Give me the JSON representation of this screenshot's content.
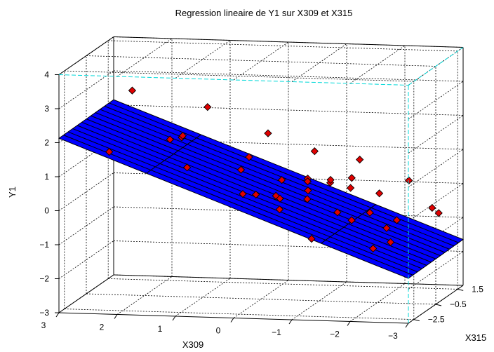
{
  "chart_data": {
    "type": "scatter3d",
    "title": "Regression lineaire de Y1 sur X309 et X315",
    "xlabel": "X309",
    "ylabel": "X315",
    "zlabel": "Y1",
    "xlim": [
      3,
      -3
    ],
    "ylim": [
      -3,
      2
    ],
    "zlim": [
      -3,
      4
    ],
    "x_ticks": [
      "3",
      "2",
      "1",
      "0",
      "−1",
      "−2",
      "−3"
    ],
    "y_ticks": [
      "1.5",
      "−0.5",
      "−2.5"
    ],
    "z_ticks": [
      "4",
      "3",
      "2",
      "1",
      "0",
      "−1",
      "−2",
      "−3"
    ],
    "surface": {
      "type": "plane",
      "color": "#0000ff",
      "corners": [
        {
          "x": 3,
          "y": -3,
          "z": 2.13
        },
        {
          "x": -3,
          "y": -3,
          "z": -1.68
        },
        {
          "x": -3,
          "y": 2,
          "z": -1.65
        },
        {
          "x": 3,
          "y": 2,
          "z": 2.15
        }
      ]
    },
    "points": {
      "color": "#e00000",
      "marker": "diamond",
      "values": [
        {
          "x": 2.55,
          "y": 1.3,
          "z": 2.6
        },
        {
          "x": 2.4,
          "y": -1.6,
          "z": 1.45
        },
        {
          "x": 1.55,
          "y": 0.5,
          "z": 1.45
        },
        {
          "x": 1.45,
          "y": -1.1,
          "z": 1.75
        },
        {
          "x": 1.25,
          "y": -1.0,
          "z": 1.85
        },
        {
          "x": 1.2,
          "y": 1.0,
          "z": 2.25
        },
        {
          "x": 0.95,
          "y": -2.2,
          "z": 1.2
        },
        {
          "x": 0.3,
          "y": 0.0,
          "z": 1.05
        },
        {
          "x": 0.25,
          "y": -1.0,
          "z": 0.9
        },
        {
          "x": 0.35,
          "y": 2.0,
          "z": 1.3
        },
        {
          "x": -0.6,
          "y": 1.2,
          "z": 1.0
        },
        {
          "x": -0.5,
          "y": -1.8,
          "z": 0.35
        },
        {
          "x": -0.55,
          "y": -1.7,
          "z": 0.25
        },
        {
          "x": -0.3,
          "y": -0.2,
          "z": 0.45
        },
        {
          "x": -0.1,
          "y": -1.5,
          "z": 0.3
        },
        {
          "x": 0.05,
          "y": -1.9,
          "z": 0.4
        },
        {
          "x": -0.6,
          "y": -2.0,
          "z": 0.0
        },
        {
          "x": -1.2,
          "y": 1.4,
          "z": 0.2
        },
        {
          "x": -1.0,
          "y": 0.5,
          "z": 0.25
        },
        {
          "x": -0.85,
          "y": -0.8,
          "z": 0.05
        },
        {
          "x": -0.9,
          "y": -1.0,
          "z": 0.35
        },
        {
          "x": -0.65,
          "y": 0.3,
          "z": 0.4
        },
        {
          "x": -0.8,
          "y": -0.5,
          "z": 0.5
        },
        {
          "x": -1.1,
          "y": 0.0,
          "z": 0.45
        },
        {
          "x": -1.3,
          "y": 1.6,
          "z": 0.7
        },
        {
          "x": -1.3,
          "y": -2.8,
          "z": -0.65
        },
        {
          "x": -1.5,
          "y": -0.3,
          "z": 0.3
        },
        {
          "x": -1.5,
          "y": -1.5,
          "z": -0.15
        },
        {
          "x": -1.8,
          "y": -1.8,
          "z": -0.3
        },
        {
          "x": -2.0,
          "y": -1.2,
          "z": -0.2
        },
        {
          "x": -2.2,
          "y": 1.3,
          "z": 0.2
        },
        {
          "x": -1.9,
          "y": 0.2,
          "z": 0.05
        },
        {
          "x": -2.5,
          "y": -1.4,
          "z": -0.35
        },
        {
          "x": -2.4,
          "y": -1.8,
          "z": -0.5
        },
        {
          "x": -2.6,
          "y": -2.5,
          "z": -0.75
        },
        {
          "x": -2.75,
          "y": 0.5,
          "z": -0.4
        },
        {
          "x": -2.9,
          "y": 0.3,
          "z": -0.5
        },
        {
          "x": -2.3,
          "y": -2.5,
          "z": -0.95
        }
      ]
    },
    "grid": true
  }
}
